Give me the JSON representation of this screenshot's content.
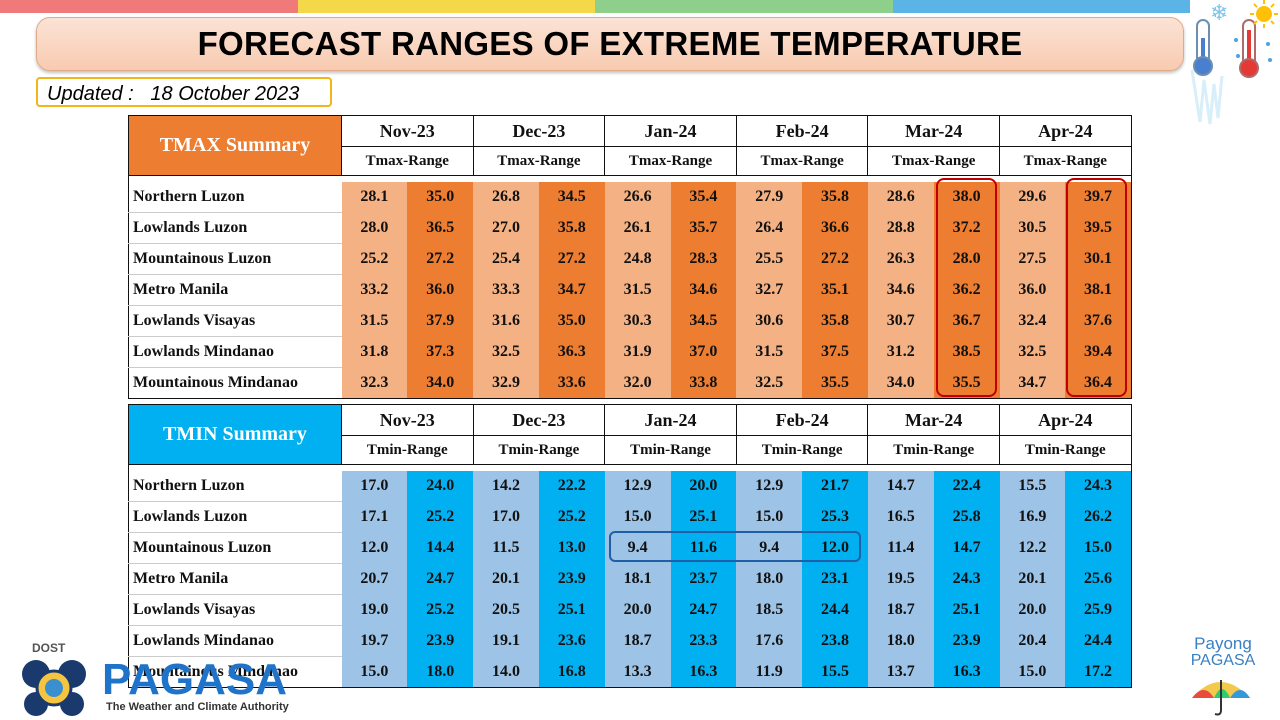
{
  "title": "FORECAST RANGES OF EXTREME TEMPERATURE",
  "updated_label": "Updated :",
  "updated_date": "18 October 2023",
  "months": [
    "Nov-23",
    "Dec-23",
    "Jan-24",
    "Feb-24",
    "Mar-24",
    "Apr-24"
  ],
  "tmax": {
    "label": "TMAX Summary",
    "range_label": "Tmax-Range",
    "rows": [
      {
        "region": "Northern Luzon",
        "values": [
          "28.1",
          "35.0",
          "26.8",
          "34.5",
          "26.6",
          "35.4",
          "27.9",
          "35.8",
          "28.6",
          "38.0",
          "29.6",
          "39.7"
        ]
      },
      {
        "region": "Lowlands Luzon",
        "values": [
          "28.0",
          "36.5",
          "27.0",
          "35.8",
          "26.1",
          "35.7",
          "26.4",
          "36.6",
          "28.8",
          "37.2",
          "30.5",
          "39.5"
        ]
      },
      {
        "region": "Mountainous Luzon",
        "values": [
          "25.2",
          "27.2",
          "25.4",
          "27.2",
          "24.8",
          "28.3",
          "25.5",
          "27.2",
          "26.3",
          "28.0",
          "27.5",
          "30.1"
        ]
      },
      {
        "region": "Metro Manila",
        "values": [
          "33.2",
          "36.0",
          "33.3",
          "34.7",
          "31.5",
          "34.6",
          "32.7",
          "35.1",
          "34.6",
          "36.2",
          "36.0",
          "38.1"
        ]
      },
      {
        "region": "Lowlands Visayas",
        "values": [
          "31.5",
          "37.9",
          "31.6",
          "35.0",
          "30.3",
          "34.5",
          "30.6",
          "35.8",
          "30.7",
          "36.7",
          "32.4",
          "37.6"
        ]
      },
      {
        "region": "Lowlands Mindanao",
        "values": [
          "31.8",
          "37.3",
          "32.5",
          "36.3",
          "31.9",
          "37.0",
          "31.5",
          "37.5",
          "31.2",
          "38.5",
          "32.5",
          "39.4"
        ]
      },
      {
        "region": "Mountainous Mindanao",
        "values": [
          "32.3",
          "34.0",
          "32.9",
          "33.6",
          "32.0",
          "33.8",
          "32.5",
          "35.5",
          "34.0",
          "35.5",
          "34.7",
          "36.4"
        ]
      }
    ]
  },
  "tmin": {
    "label": "TMIN Summary",
    "range_label": "Tmin-Range",
    "rows": [
      {
        "region": "Northern Luzon",
        "values": [
          "17.0",
          "24.0",
          "14.2",
          "22.2",
          "12.9",
          "20.0",
          "12.9",
          "21.7",
          "14.7",
          "22.4",
          "15.5",
          "24.3"
        ]
      },
      {
        "region": "Lowlands Luzon",
        "values": [
          "17.1",
          "25.2",
          "17.0",
          "25.2",
          "15.0",
          "25.1",
          "15.0",
          "25.3",
          "16.5",
          "25.8",
          "16.9",
          "26.2"
        ]
      },
      {
        "region": "Mountainous Luzon",
        "values": [
          "12.0",
          "14.4",
          "11.5",
          "13.0",
          "9.4",
          "11.6",
          "9.4",
          "12.0",
          "11.4",
          "14.7",
          "12.2",
          "15.0"
        ]
      },
      {
        "region": "Metro Manila",
        "values": [
          "20.7",
          "24.7",
          "20.1",
          "23.9",
          "18.1",
          "23.7",
          "18.0",
          "23.1",
          "19.5",
          "24.3",
          "20.1",
          "25.6"
        ]
      },
      {
        "region": "Lowlands Visayas",
        "values": [
          "19.0",
          "25.2",
          "20.5",
          "25.1",
          "20.0",
          "24.7",
          "18.5",
          "24.4",
          "18.7",
          "25.1",
          "20.0",
          "25.9"
        ]
      },
      {
        "region": "Lowlands Mindanao",
        "values": [
          "19.7",
          "23.9",
          "19.1",
          "23.6",
          "18.7",
          "23.3",
          "17.6",
          "23.8",
          "18.0",
          "23.9",
          "20.4",
          "24.4"
        ]
      },
      {
        "region": "Mountainous Mindanao",
        "values": [
          "15.0",
          "18.0",
          "14.0",
          "16.8",
          "13.3",
          "16.3",
          "11.9",
          "15.5",
          "13.7",
          "16.3",
          "15.0",
          "17.2"
        ]
      }
    ]
  },
  "logos": {
    "dost": "DOST",
    "pagasa": "PAGASA",
    "tagline": "The Weather and Climate Authority",
    "payong_line1": "Payong",
    "payong_line2": "PAGASA"
  },
  "colors": {
    "tmax_header": "#ed7d31",
    "tmax_low": "#f4b183",
    "tmax_high": "#ed7d31",
    "tmin_header": "#00b0f0",
    "tmin_low": "#9dc3e6",
    "tmin_high": "#00b0f0",
    "highlight_red": "#c00000",
    "highlight_blue": "#1f5fa8"
  },
  "icons": [
    "thermometer-cold-icon",
    "thermometer-hot-icon",
    "dost-logo",
    "pagasa-logo",
    "payong-pagasa-umbrella-icon"
  ]
}
